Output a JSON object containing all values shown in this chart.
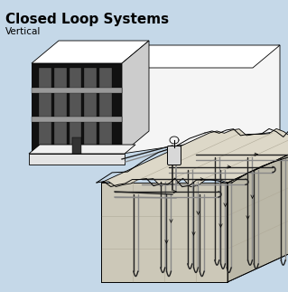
{
  "title": "Closed Loop Systems",
  "subtitle": "Vertical",
  "bg_color": "#c5d8e8",
  "title_fontsize": 11,
  "subtitle_fontsize": 7.5,
  "building": {
    "front_color": "#111111",
    "top_color": "#ffffff",
    "right_color": "#e8e8e8",
    "wall_color": "#f5f5f5",
    "wall_top_color": "#eeeeee",
    "base_color": "#e0e0e0",
    "stripe_color": "#888888",
    "window_color": "#555555"
  },
  "ground": {
    "top_color": "#ddd8c8",
    "front_color": "#ccc8b8",
    "right_color": "#bbb8a8",
    "grid_color": "#aaa898"
  },
  "pipes": {
    "dark": "#222222",
    "mid": "#888888",
    "lw": 1.0
  }
}
